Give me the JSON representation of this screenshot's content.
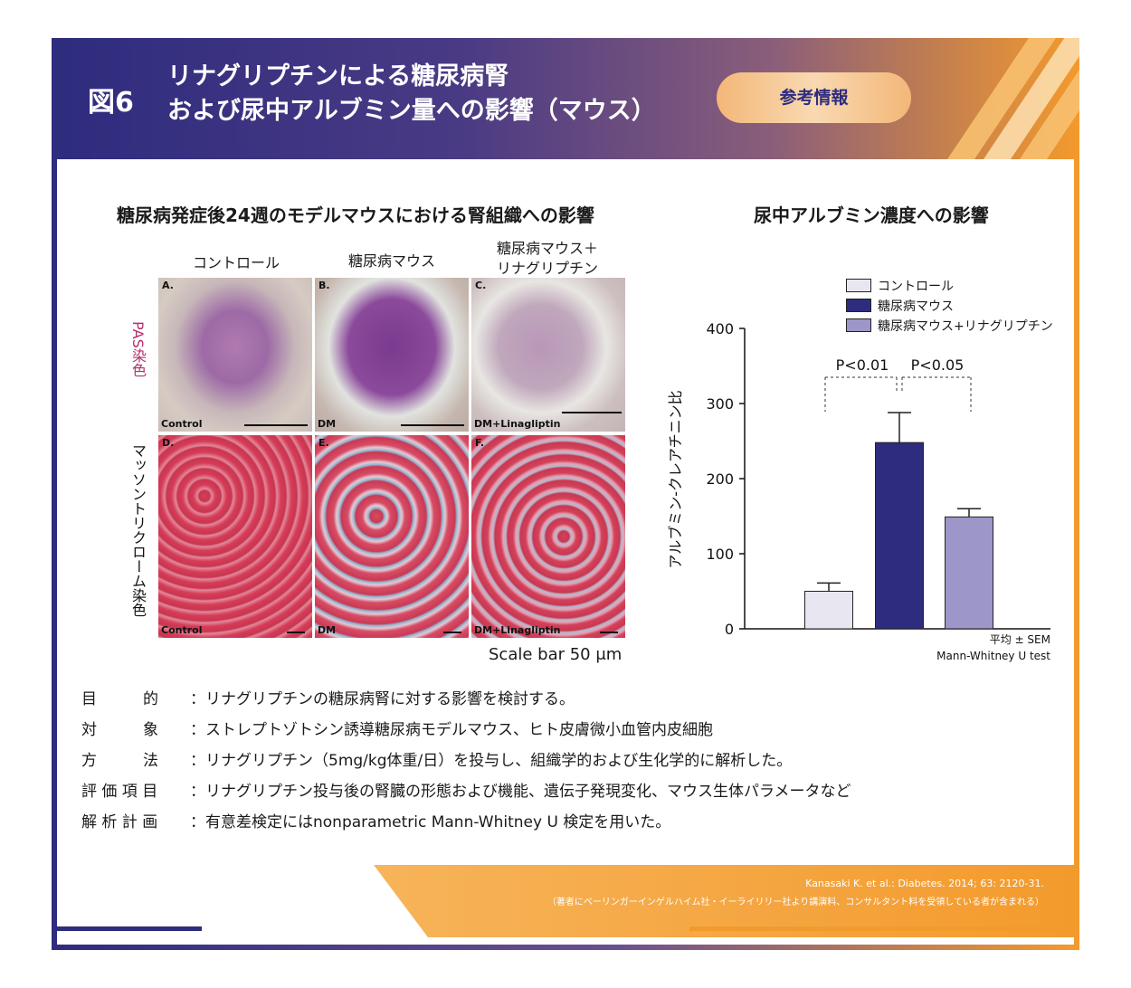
{
  "header": {
    "figure_number": "図6",
    "title_line1": "リナグリプチンによる糖尿病腎",
    "title_line2": "および尿中アルブミン量への影響（マウス）",
    "badge": "参考情報"
  },
  "left_section": {
    "title": "糖尿病発症後24週のモデルマウスにおける腎組織への影響",
    "columns": [
      "コントロール",
      "糖尿病マウス",
      "糖尿病マウス＋",
      "リナグリプチン"
    ],
    "rows": [
      "PAS染色",
      "マッソントリクローム染色"
    ],
    "panels": [
      {
        "letter": "A.",
        "caption": "Control"
      },
      {
        "letter": "B.",
        "caption": "DM"
      },
      {
        "letter": "C.",
        "caption": "DM+Linagliptin"
      },
      {
        "letter": "D.",
        "caption": "Control"
      },
      {
        "letter": "E.",
        "caption": "DM"
      },
      {
        "letter": "F.",
        "caption": "DM+Linagliptin"
      }
    ],
    "scale_bar": "Scale bar 50 μm"
  },
  "chart_data": {
    "type": "bar",
    "title": "尿中アルブミン濃度への影響",
    "ylabel": "アルブミン-クレアチニン比",
    "ylim": [
      0,
      400
    ],
    "yticks": [
      "0",
      "100",
      "200",
      "300",
      "400"
    ],
    "categories": [
      "コントロール",
      "糖尿病マウス",
      "糖尿病マウス+リナグリプチン"
    ],
    "values": [
      50,
      248,
      149
    ],
    "errors": [
      11,
      40,
      11
    ],
    "colors": [
      "#e8e6f0",
      "#2e2c7e",
      "#9d96c8"
    ],
    "significance": [
      "P<0.01",
      "P<0.05"
    ],
    "note1": "平均 ± SEM",
    "note2": "Mann-Whitney U test"
  },
  "info": [
    {
      "label": "目　　　的",
      "text": "：リナグリプチンの糖尿病腎に対する影響を検討する。"
    },
    {
      "label": "対　　　象",
      "text": "：ストレプトゾトシン誘導糖尿病モデルマウス、ヒト皮膚微小血管内皮細胞"
    },
    {
      "label": "方　　　法",
      "text": "：リナグリプチン（5mg/kg体重/日）を投与し、組織学的および生化学的に解析した。"
    },
    {
      "label": "評 価 項 目",
      "text": "：リナグリプチン投与後の腎臓の形態および機能、遺伝子発現変化、マウス生体パラメータなど"
    },
    {
      "label": "解 析 計 画",
      "text": "：有意差検定にはnonparametric Mann-Whitney U 検定を用いた。"
    }
  ],
  "footer": {
    "ref_line1": "Kanasaki K. et al.: Diabetes. 2014; 63: 2120-31.",
    "ref_line2": "（著者にベーリンガーインゲルハイム社・イーライリリー社より講演料、コンサルタント料を受領している者が含まれる）"
  }
}
